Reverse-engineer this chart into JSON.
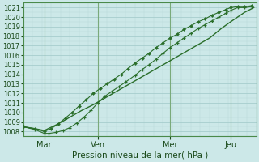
{
  "xlabel": "Pression niveau de la mer( hPa )",
  "ylim": [
    1007.5,
    1021.5
  ],
  "xlim": [
    0.0,
    10.0
  ],
  "yticks": [
    1008,
    1009,
    1010,
    1011,
    1012,
    1013,
    1014,
    1015,
    1016,
    1017,
    1018,
    1019,
    1020,
    1021
  ],
  "xtick_positions": [
    0.9,
    3.2,
    6.3,
    8.9
  ],
  "xtick_labels": [
    "Mar",
    "Ven",
    "Mer",
    "Jeu"
  ],
  "vline_positions": [
    0.9,
    3.2,
    6.3,
    8.9
  ],
  "bg_color": "#cce8e8",
  "grid_color": "#9fc8c8",
  "grid_minor_color": "#b8d8d8",
  "line_color": "#2a6e2a",
  "line1_x": [
    0.0,
    0.5,
    0.9,
    1.5,
    2.0,
    2.5,
    3.0,
    3.5,
    4.0,
    4.5,
    5.0,
    5.5,
    6.0,
    6.5,
    7.0,
    7.5,
    8.0,
    8.5,
    8.9,
    9.5,
    9.9
  ],
  "line1_y": [
    1008.5,
    1008.3,
    1008.1,
    1008.8,
    1009.5,
    1010.2,
    1010.8,
    1011.5,
    1012.2,
    1012.9,
    1013.6,
    1014.3,
    1015.0,
    1015.7,
    1016.4,
    1017.1,
    1017.8,
    1018.8,
    1019.5,
    1020.5,
    1021.0
  ],
  "line2_x": [
    0.0,
    0.5,
    0.9,
    1.1,
    1.4,
    1.7,
    2.0,
    2.3,
    2.6,
    2.9,
    3.2,
    3.5,
    3.8,
    4.1,
    4.4,
    4.8,
    5.1,
    5.4,
    5.7,
    6.0,
    6.3,
    6.6,
    6.9,
    7.2,
    7.5,
    7.8,
    8.1,
    8.4,
    8.7,
    8.9,
    9.2,
    9.5,
    9.8
  ],
  "line2_y": [
    1008.5,
    1008.2,
    1007.8,
    1007.8,
    1007.9,
    1008.1,
    1008.4,
    1008.9,
    1009.5,
    1010.2,
    1011.0,
    1011.7,
    1012.2,
    1012.7,
    1013.2,
    1013.9,
    1014.5,
    1015.0,
    1015.6,
    1016.2,
    1016.8,
    1017.3,
    1017.8,
    1018.3,
    1018.8,
    1019.2,
    1019.6,
    1020.0,
    1020.4,
    1020.7,
    1021.0,
    1021.0,
    1021.1
  ],
  "line3_x": [
    0.0,
    0.5,
    0.9,
    1.2,
    1.5,
    1.8,
    2.1,
    2.4,
    2.7,
    3.0,
    3.3,
    3.6,
    3.9,
    4.2,
    4.5,
    4.8,
    5.1,
    5.4,
    5.7,
    6.0,
    6.3,
    6.6,
    6.9,
    7.2,
    7.5,
    7.8,
    8.1,
    8.4,
    8.7,
    8.9,
    9.2,
    9.5,
    9.8
  ],
  "line3_y": [
    1008.5,
    1008.3,
    1008.0,
    1008.3,
    1008.8,
    1009.4,
    1010.0,
    1010.7,
    1011.3,
    1012.0,
    1012.5,
    1013.0,
    1013.5,
    1014.0,
    1014.6,
    1015.2,
    1015.7,
    1016.2,
    1016.8,
    1017.3,
    1017.8,
    1018.2,
    1018.7,
    1019.1,
    1019.5,
    1019.8,
    1020.2,
    1020.5,
    1020.8,
    1021.0,
    1021.1,
    1021.1,
    1021.2
  ]
}
